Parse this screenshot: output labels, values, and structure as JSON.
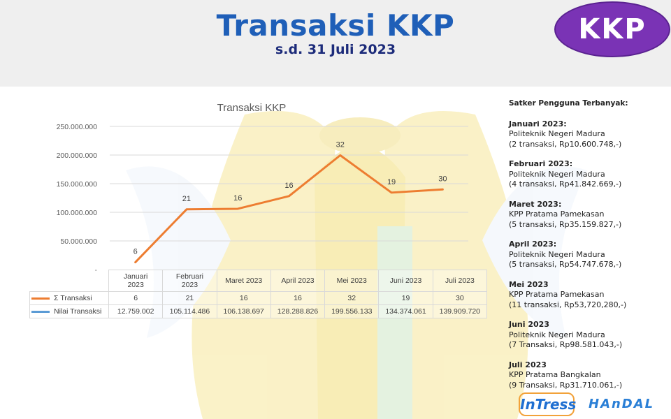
{
  "header": {
    "title": "Transaksi KKP",
    "subtitle": "s.d. 31 Juli 2023",
    "logo_text": "KKP"
  },
  "colors": {
    "title": "#1f5fb8",
    "subtitle": "#1c2b7a",
    "logo_bg": "#7a33b5",
    "line_series": "#ed7d31",
    "legend_blue": "#5b9bd5"
  },
  "chart_data": {
    "type": "line",
    "title": "Transaksi KKP",
    "categories": [
      "Januari 2023",
      "Februari 2023",
      "Maret 2023",
      "April 2023",
      "Mei 2023",
      "Juni 2023",
      "Juli 2023"
    ],
    "categories_display": [
      [
        "Januari",
        "2023"
      ],
      [
        "Februari",
        "2023"
      ],
      [
        "Maret 2023"
      ],
      [
        "April 2023"
      ],
      [
        "Mei 2023"
      ],
      [
        "Juni 2023"
      ],
      [
        "Juli 2023"
      ]
    ],
    "y_ticks": [
      "250.000.000",
      "200.000.000",
      "150.000.000",
      "100.000.000",
      "50.000.000",
      "-"
    ],
    "ylim": [
      0,
      250000000
    ],
    "grid": true,
    "series": [
      {
        "name": "Σ Transaksi",
        "values": [
          6,
          21,
          16,
          16,
          32,
          19,
          30
        ],
        "display": [
          "6",
          "21",
          "16",
          "16",
          "32",
          "19",
          "30"
        ]
      },
      {
        "name": "Nilai Transaksi",
        "values": [
          12759002,
          105114486,
          106138697,
          128288826,
          199556133,
          134374061,
          139909720
        ],
        "display": [
          "12.759.002",
          "105.114.486",
          "106.138.697",
          "128.288.826",
          "199.556.133",
          "134.374.061",
          "139.909.720"
        ]
      }
    ],
    "plotted_series": "Nilai Transaksi",
    "point_labels_series": "Σ Transaksi"
  },
  "side_panel": {
    "heading": "Satker Pengguna Terbanyak:",
    "months": [
      {
        "label": "Januari 2023:",
        "name": "Politeknik Negeri Madura",
        "detail": "(2 transaksi, Rp10.600.748,-)"
      },
      {
        "label": "Februari 2023:",
        "name": "Politeknik Negeri Madura",
        "detail": "(4 transaksi, Rp41.842.669,-)"
      },
      {
        "label": "Maret 2023:",
        "name": "KPP Pratama Pamekasan",
        "detail": "(5 transaksi, Rp35.159.827,-)"
      },
      {
        "label": "April 2023:",
        "name": "Politeknik Negeri Madura",
        "detail": "(5 transaksi, Rp54.747.678,-)"
      },
      {
        "label": "Mei 2023",
        "name": "KPP Pratama Pamekasan",
        "detail": "(11 transaksi, Rp53,720,280,-)"
      },
      {
        "label": "Juni 2023",
        "name": "Politeknik Negeri Madura",
        "detail": "(7 Transaksi, Rp98.581.043,-)"
      },
      {
        "label": "Juli 2023",
        "name": "KPP Pratama Bangkalan",
        "detail": "(9 Transaksi, Rp31.710.061,-)"
      }
    ]
  },
  "footer": {
    "logo_left": "InTress",
    "logo_right": "HAnDAL"
  }
}
